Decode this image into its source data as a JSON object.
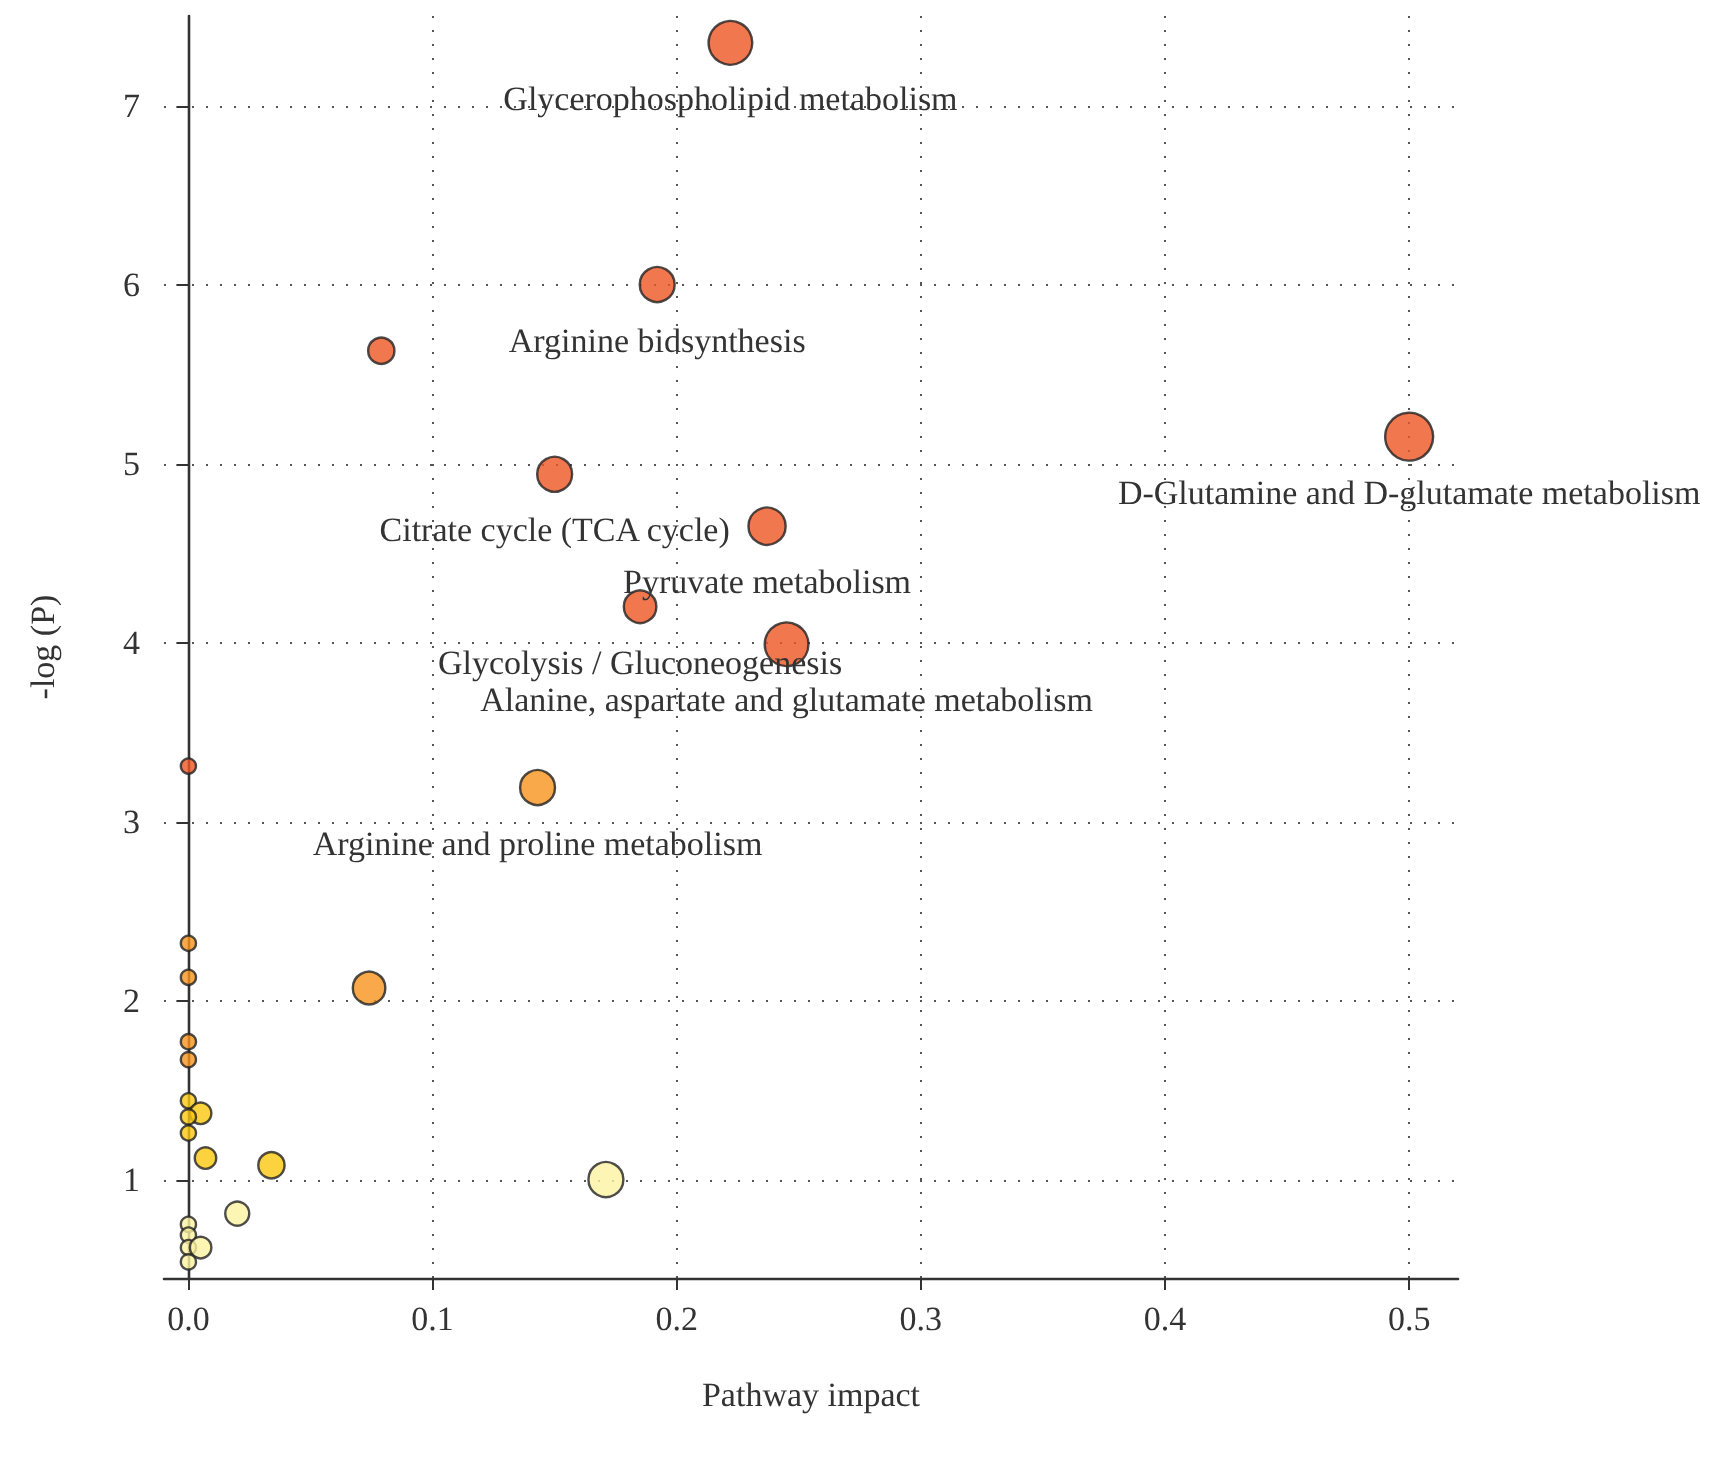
{
  "chart_data": {
    "type": "bubble",
    "xlabel": "Pathway impact",
    "ylabel": "-log (P)",
    "x": [
      0.222,
      0.192,
      0.079,
      0.5,
      0.15,
      0.237,
      0.185,
      0.245,
      0.143,
      0,
      0.074,
      0,
      0,
      0,
      0,
      0,
      0.005,
      0,
      0,
      0.007,
      0.034,
      0.171,
      0.02,
      0,
      0,
      0,
      0.005,
      0
    ],
    "values": [
      7.35,
      6.0,
      5.63,
      5.15,
      4.94,
      4.65,
      4.2,
      3.99,
      3.19,
      3.31,
      2.07,
      2.32,
      2.13,
      1.77,
      1.67,
      1.44,
      1.37,
      1.35,
      1.26,
      1.12,
      1.08,
      1.0,
      0.81,
      0.75,
      0.69,
      0.62,
      0.62,
      0.54
    ],
    "sizes": [
      0.83,
      0.53,
      0.3,
      1,
      0.53,
      0.6,
      0.46,
      0.83,
      0.53,
      0.1,
      0.46,
      0.1,
      0.1,
      0.1,
      0.1,
      0.1,
      0.2,
      0.1,
      0.1,
      0.2,
      0.3,
      0.53,
      0.25,
      0.1,
      0.1,
      0.1,
      0.2,
      0.1
    ],
    "colors": [
      "#ee5522",
      "#ee5522",
      "#ee5522",
      "#ee5522",
      "#ee5522",
      "#ee5522",
      "#ee5522",
      "#ee5522",
      "#f7941d",
      "#ee5522",
      "#f7941d",
      "#f7941d",
      "#f7941d",
      "#f7941d",
      "#f7941d",
      "#fcc70f",
      "#fcc70f",
      "#fcc70f",
      "#fcc70f",
      "#fcc70f",
      "#fcc70f",
      "#fdf3a0",
      "#fdf3a0",
      "#fdf3a0",
      "#fdf3a0",
      "#fdf3a0",
      "#fdf3a0",
      "#fdf3a0"
    ],
    "xlim": [
      -0.01,
      0.52
    ],
    "xticks": [
      {
        "value": 0,
        "label": "0.0"
      },
      0.1,
      0.2,
      0.3,
      0.4,
      0.5
    ],
    "ylim": [
      0.45,
      7.5
    ],
    "yticks": [
      1,
      2,
      3,
      4,
      5,
      6,
      7
    ],
    "grid": true,
    "marker": "circle",
    "annotations": [
      {
        "text": "Glycerophospholipid metabolism",
        "x": 0.222,
        "y": 7.35
      },
      {
        "text": "Arginine bidsynthesis",
        "x": 0.192,
        "y": 6.0
      },
      {
        "text": "D-Glutamine and D-glutamate metabolism",
        "x": 0.5,
        "y": 5.15
      },
      {
        "text": "Citrate cycle (TCA cycle)",
        "x": 0.15,
        "y": 4.94
      },
      {
        "text": "Pyruvate metabolism",
        "x": 0.237,
        "y": 4.65
      },
      {
        "text": "Glycolysis / Gluconeogenesis",
        "x": 0.185,
        "y": 4.2
      },
      {
        "text": "Alanine, aspartate and glutamate metabolism",
        "x": 0.245,
        "y": 3.99
      },
      {
        "text": "Arginine and proline metabolism",
        "x": 0.143,
        "y": 3.19
      }
    ]
  }
}
